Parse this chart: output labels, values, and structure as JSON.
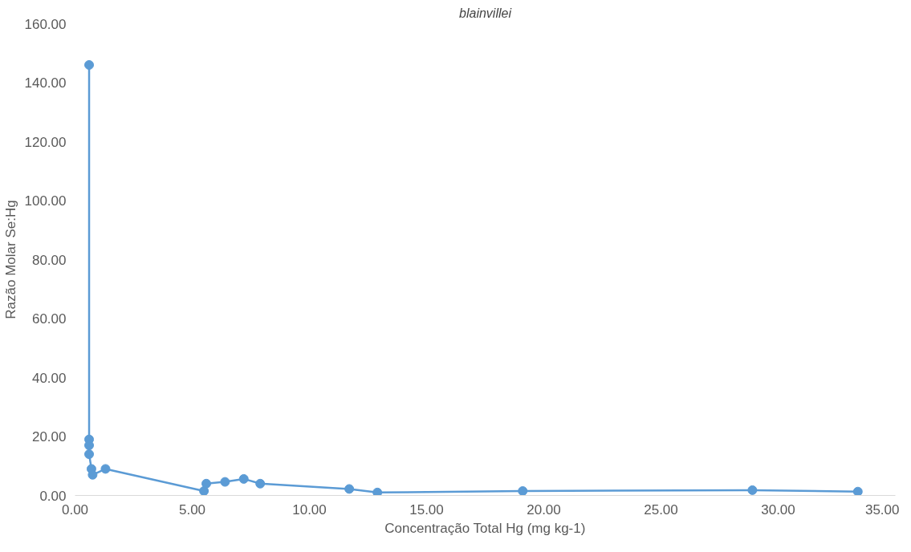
{
  "chart_data": {
    "type": "line",
    "title": "blainvillei",
    "xlabel": "Concentração Total Hg (mg kg-1)",
    "ylabel": "Razão Molar Se:Hg",
    "xlim": [
      0,
      35
    ],
    "xticks": [
      {
        "value": 0,
        "label": "0.00"
      },
      {
        "value": 5,
        "label": "5.00"
      },
      {
        "value": 10,
        "label": "10.00"
      },
      {
        "value": 15,
        "label": "15.00"
      },
      {
        "value": 20,
        "label": "20.00"
      },
      {
        "value": 25,
        "label": "25.00"
      },
      {
        "value": 30,
        "label": "30.00"
      },
      {
        "value": 35,
        "label": "35.00"
      }
    ],
    "ylim": [
      0,
      160
    ],
    "yticks": [
      {
        "value": 0,
        "label": "0.00"
      },
      {
        "value": 20,
        "label": "20.00"
      },
      {
        "value": 40,
        "label": "40.00"
      },
      {
        "value": 60,
        "label": "60.00"
      },
      {
        "value": 80,
        "label": "80.00"
      },
      {
        "value": 100,
        "label": "100.00"
      },
      {
        "value": 120,
        "label": "120.00"
      },
      {
        "value": 140,
        "label": "140.00"
      },
      {
        "value": 160,
        "label": "160.00"
      }
    ],
    "marker": "circle",
    "grid": false,
    "series": [
      {
        "color": "#5b9bd5",
        "x": [
          0.6,
          0.6,
          0.6,
          0.6,
          0.7,
          0.75,
          1.3,
          5.5,
          5.6,
          6.4,
          7.2,
          7.9,
          11.7,
          12.9,
          19.1,
          28.9,
          33.4
        ],
        "values": [
          146,
          19,
          17,
          14,
          9,
          7,
          9,
          1.5,
          4,
          4.6,
          5.6,
          4,
          2.2,
          1,
          1.5,
          1.8,
          1.3
        ]
      }
    ]
  }
}
